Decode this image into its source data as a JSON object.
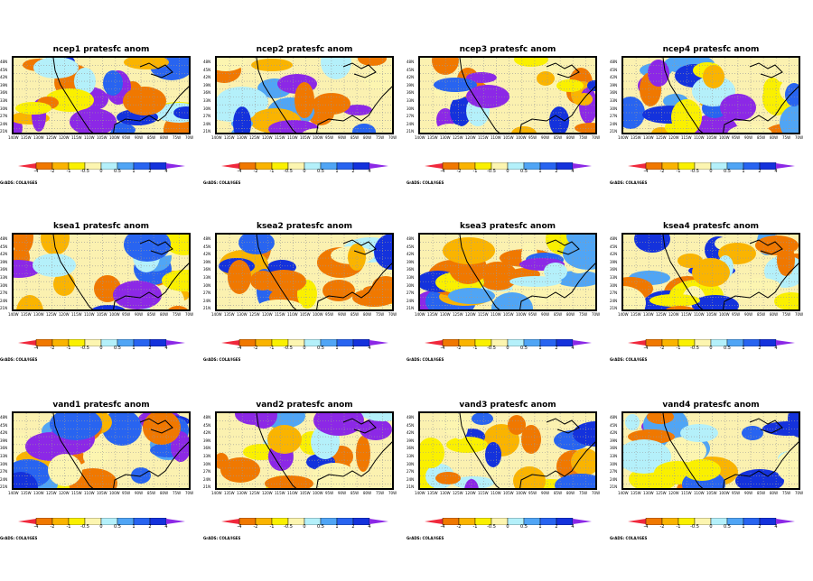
{
  "chart_data": {
    "type": "heatmap",
    "panels": [
      {
        "title": "ncep1 pratesfc anom"
      },
      {
        "title": "ncep2 pratesfc anom"
      },
      {
        "title": "ncep3 pratesfc anom"
      },
      {
        "title": "ncep4 pratesfc anom"
      },
      {
        "title": "ksea1 pratesfc anom"
      },
      {
        "title": "ksea2 pratesfc anom"
      },
      {
        "title": "ksea3 pratesfc anom"
      },
      {
        "title": "ksea4 pratesfc anom"
      },
      {
        "title": "vand1 pratesfc anom"
      },
      {
        "title": "vand2 pratesfc anom"
      },
      {
        "title": "vand3 pratesfc anom"
      },
      {
        "title": "vand4 pratesfc anom"
      }
    ],
    "lat_ticks": [
      "48N",
      "45N",
      "42N",
      "39N",
      "36N",
      "33N",
      "30N",
      "27N",
      "24N",
      "21N"
    ],
    "lon_ticks": [
      "140W",
      "135W",
      "130W",
      "125W",
      "120W",
      "115W",
      "110W",
      "105W",
      "100W",
      "95W",
      "90W",
      "85W",
      "80W",
      "75W",
      "70W"
    ],
    "colorbar": {
      "labels": [
        "-4",
        "-2",
        "-1",
        "-0.5",
        "0",
        "0.5",
        "1",
        "2",
        "4"
      ],
      "colors": [
        "#f0283c",
        "#f07800",
        "#fab400",
        "#faf000",
        "#fcf5b0",
        "#b4f0fa",
        "#50a5f5",
        "#2864f0",
        "#1432dc",
        "#8c28e6"
      ]
    },
    "footer": "GrADS: COLA/IGES"
  }
}
